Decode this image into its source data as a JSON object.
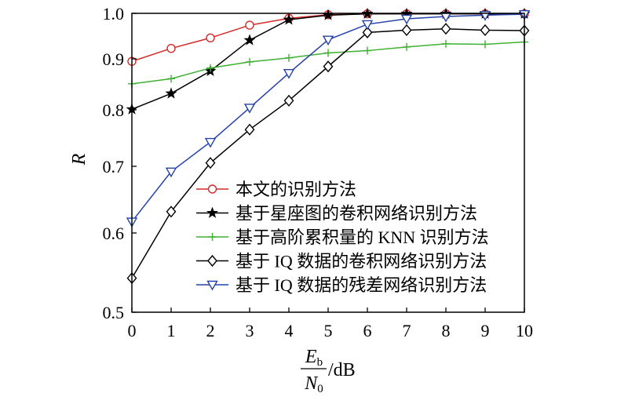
{
  "chart_data": {
    "type": "line",
    "x": [
      0,
      1,
      2,
      3,
      4,
      5,
      6,
      7,
      8,
      9,
      10
    ],
    "xlim": [
      0,
      10
    ],
    "ylim": [
      0.5,
      1.0
    ],
    "y_scale": "nonlinear",
    "x_ticks": [
      "0",
      "1",
      "2",
      "3",
      "4",
      "5",
      "6",
      "7",
      "8",
      "9",
      "10"
    ],
    "y_ticks": [
      {
        "value": 0.5,
        "label": "0.5"
      },
      {
        "value": 0.6,
        "label": "0.6"
      },
      {
        "value": 0.7,
        "label": "0.7"
      },
      {
        "value": 0.8,
        "label": "0.8"
      },
      {
        "value": 0.9,
        "label": "0.9"
      },
      {
        "value": 1.0,
        "label": "1.0"
      }
    ],
    "ylabel": "R",
    "xlabel": {
      "numerator_main": "E",
      "numerator_sub": "b",
      "denominator_main": "N",
      "denominator_sub": "0",
      "unit": "/dB"
    },
    "grid": false,
    "legend_position": "lower-right",
    "series": [
      {
        "name": "本文的识别方法",
        "color": "#d42a2a",
        "marker": "circle",
        "values": [
          0.895,
          0.923,
          0.946,
          0.974,
          0.989,
          0.997,
          0.999,
          0.999,
          0.999,
          0.999,
          0.999
        ]
      },
      {
        "name": "基于星座图的卷积网络识别方法",
        "color": "#000000",
        "marker": "star",
        "values": [
          0.801,
          0.832,
          0.876,
          0.941,
          0.986,
          0.996,
          0.999,
          0.999,
          0.999,
          0.999,
          0.999
        ]
      },
      {
        "name": "基于高阶累积量的 KNN 识别方法",
        "color": "#3fb034",
        "marker": "plus",
        "values": [
          0.851,
          0.861,
          0.882,
          0.894,
          0.902,
          0.913,
          0.918,
          0.926,
          0.933,
          0.932,
          0.937
        ]
      },
      {
        "name": "基于 IQ 数据的卷积网络识别方法",
        "color": "#000000",
        "marker": "diamond",
        "values": [
          0.543,
          0.632,
          0.706,
          0.765,
          0.818,
          0.885,
          0.958,
          0.963,
          0.966,
          0.963,
          0.962
        ]
      },
      {
        "name": "基于 IQ 数据的残差网络识别方法",
        "color": "#2442a8",
        "marker": "triangle-down",
        "values": [
          0.617,
          0.692,
          0.743,
          0.804,
          0.872,
          0.942,
          0.976,
          0.988,
          0.993,
          0.996,
          0.998
        ]
      }
    ]
  }
}
